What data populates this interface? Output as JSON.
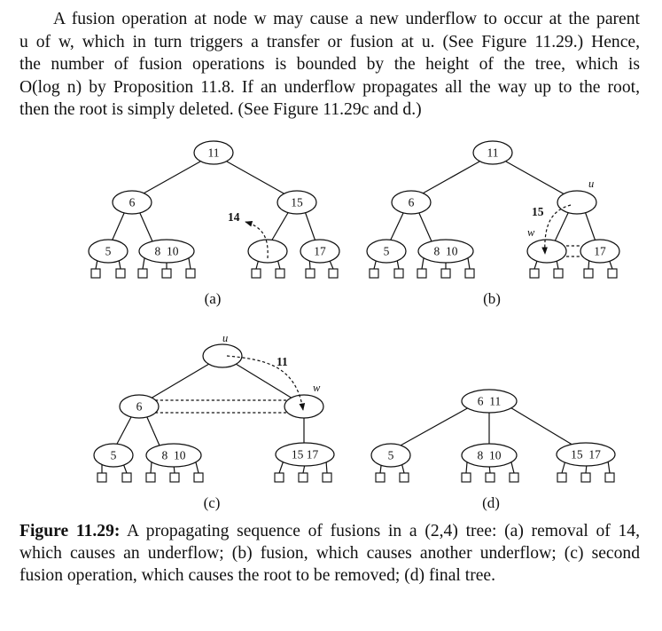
{
  "paragraph": {
    "lines": [
      "A fusion operation at node w may cause a new underflow to occur at the parent",
      "u of w, which in turn triggers a transfer or fusion at u. (See Figure 11.29.) Hence,",
      "the number of fusion operations is bounded by the height of the tree, which is",
      "O(log n) by Proposition 11.8. If an underflow propagates all the way up to the root,",
      "then the root is simply deleted. (See Figure 11.29c and d.)"
    ]
  },
  "figure": {
    "panels": [
      {
        "label": "(a)",
        "nodes": {
          "root": "11",
          "left": "6",
          "right": "15",
          "ll": "5",
          "lr": "8  10",
          "rl": "",
          "rr": "17"
        },
        "annotations": {
          "moved_key": "14"
        }
      },
      {
        "label": "(b)",
        "nodes": {
          "root": "11",
          "left": "6",
          "right": "",
          "ll": "5",
          "lr": "8  10",
          "rl": "",
          "rr": "17"
        },
        "annotations": {
          "moved_key": "15",
          "parent_var": "u",
          "node_var": "w"
        }
      },
      {
        "label": "(c)",
        "nodes": {
          "root": "",
          "left": "6",
          "right": "",
          "ll": "5",
          "lr": "8  10",
          "rr": "15 17"
        },
        "annotations": {
          "moved_key": "11",
          "parent_var": "u",
          "node_var": "w"
        }
      },
      {
        "label": "(d)",
        "nodes": {
          "root": "6  11",
          "c1": "5",
          "c2": "8  10",
          "c3": "15  17"
        }
      }
    ]
  },
  "caption": {
    "label": "Figure 11.29:",
    "lines": [
      "A propagating sequence of fusions in a (2,4) tree: (a) removal of 14,",
      "which causes an underflow; (b) fusion, which causes another underflow; (c) second",
      "fusion operation, which causes the root to be removed; (d) final tree."
    ]
  }
}
